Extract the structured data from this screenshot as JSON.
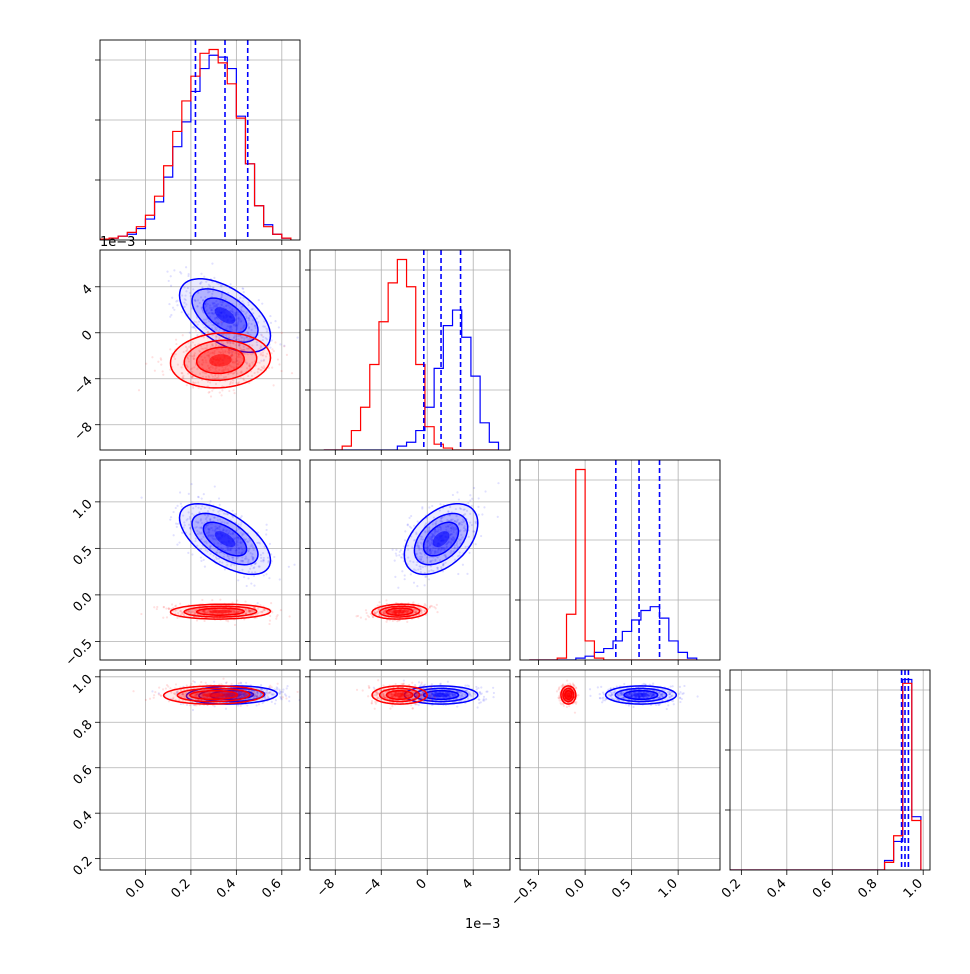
{
  "chart_data": {
    "type": "corner",
    "grid": true,
    "series": [
      {
        "color": "#0000ff"
      },
      {
        "color": "#ff0000"
      }
    ],
    "exponent_labels": {
      "p1_axis": "1e−3",
      "p1_x_axis": "1e−3"
    },
    "parameters": [
      {
        "index": 0,
        "range": [
          -0.2,
          0.68
        ],
        "ticks": [
          0.0,
          0.2,
          0.4,
          0.6
        ],
        "tick_labels": [
          "0.0",
          "0.2",
          "0.4",
          "0.6"
        ]
      },
      {
        "index": 1,
        "range": [
          -10.2,
          7.2
        ],
        "ticks": [
          -8,
          -4,
          0,
          4
        ],
        "tick_labels": [
          "−8",
          "−4",
          "0",
          "4"
        ]
      },
      {
        "index": 2,
        "range": [
          -0.7,
          1.45
        ],
        "ticks": [
          -0.5,
          0.0,
          0.5,
          1.0
        ],
        "tick_labels": [
          "−0.5",
          "0.0",
          "0.5",
          "1.0"
        ]
      },
      {
        "index": 3,
        "range": [
          0.15,
          1.03
        ],
        "ticks": [
          0.2,
          0.4,
          0.6,
          0.8,
          1.0
        ],
        "tick_labels": [
          "0.2",
          "0.4",
          "0.6",
          "0.8",
          "1.0"
        ]
      }
    ],
    "quantile_lines": [
      [
        0.22,
        0.35,
        0.45
      ],
      [
        -0.3,
        1.2,
        2.9
      ],
      [
        0.33,
        0.58,
        0.8
      ],
      [
        0.905,
        0.92,
        0.935
      ]
    ],
    "histograms_1d": [
      {
        "param": 0,
        "bin_edges": [
          -0.2,
          -0.16,
          -0.12,
          -0.08,
          -0.04,
          0.0,
          0.04,
          0.08,
          0.12,
          0.16,
          0.2,
          0.24,
          0.28,
          0.32,
          0.36,
          0.4,
          0.44,
          0.48,
          0.52,
          0.56,
          0.6,
          0.64
        ],
        "series_0": [
          0.005,
          0.01,
          0.02,
          0.03,
          0.06,
          0.11,
          0.2,
          0.33,
          0.49,
          0.62,
          0.78,
          0.9,
          0.97,
          0.96,
          0.9,
          0.65,
          0.4,
          0.18,
          0.08,
          0.03,
          0.01
        ],
        "series_1": [
          0.005,
          0.01,
          0.02,
          0.04,
          0.07,
          0.13,
          0.23,
          0.39,
          0.57,
          0.73,
          0.86,
          0.98,
          1.0,
          0.93,
          0.82,
          0.64,
          0.4,
          0.18,
          0.07,
          0.03,
          0.01
        ]
      },
      {
        "param": 1,
        "bin_edges": [
          -9,
          -8.2,
          -7.4,
          -6.6,
          -5.8,
          -5.0,
          -4.2,
          -3.4,
          -2.6,
          -1.8,
          -1.0,
          -0.2,
          0.6,
          1.4,
          2.2,
          3.0,
          3.8,
          4.6,
          5.4,
          6.2
        ],
        "series_0": [
          0.0,
          0.0,
          0.0,
          0.0,
          0.0,
          0.0,
          0.0,
          0.0,
          0.02,
          0.04,
          0.1,
          0.22,
          0.42,
          0.64,
          0.72,
          0.58,
          0.38,
          0.14,
          0.04
        ],
        "series_1": [
          0.0,
          0.0,
          0.02,
          0.1,
          0.22,
          0.44,
          0.66,
          0.86,
          0.98,
          0.84,
          0.44,
          0.12,
          0.03,
          0.01,
          0.0,
          0.0,
          0.0,
          0.0,
          0.0
        ]
      },
      {
        "param": 2,
        "bin_edges": [
          -0.6,
          -0.5,
          -0.4,
          -0.3,
          -0.2,
          -0.1,
          0.0,
          0.1,
          0.2,
          0.3,
          0.4,
          0.5,
          0.6,
          0.7,
          0.8,
          0.9,
          1.0,
          1.1,
          1.2
        ],
        "series_0": [
          0.0,
          0.0,
          0.0,
          0.0,
          0.0,
          0.01,
          0.02,
          0.04,
          0.06,
          0.1,
          0.15,
          0.21,
          0.26,
          0.28,
          0.22,
          0.1,
          0.04,
          0.01
        ],
        "series_1": [
          0.0,
          0.0,
          0.0,
          0.01,
          0.24,
          1.0,
          0.1,
          0.01,
          0.0,
          0.0,
          0.0,
          0.0,
          0.0,
          0.0,
          0.0,
          0.0,
          0.0,
          0.0
        ]
      },
      {
        "param": 3,
        "bin_edges": [
          0.15,
          0.19,
          0.23,
          0.27,
          0.31,
          0.35,
          0.39,
          0.43,
          0.47,
          0.51,
          0.55,
          0.59,
          0.63,
          0.67,
          0.71,
          0.75,
          0.79,
          0.83,
          0.87,
          0.91,
          0.95,
          0.99
        ],
        "series_0": [
          0.0,
          0.0,
          0.0,
          0.0,
          0.0,
          0.0,
          0.0,
          0.0,
          0.0,
          0.0,
          0.0,
          0.0,
          0.0,
          0.0,
          0.0,
          0.0,
          0.0,
          0.05,
          0.15,
          1.0,
          0.28
        ],
        "series_1": [
          0.0,
          0.0,
          0.0,
          0.0,
          0.0,
          0.0,
          0.0,
          0.0,
          0.0,
          0.0,
          0.0,
          0.0,
          0.0,
          0.0,
          0.0,
          0.0,
          0.0,
          0.04,
          0.18,
          0.98,
          0.26
        ]
      }
    ],
    "joint_distributions": [
      {
        "x_param": 0,
        "y_param": 1,
        "series_0": {
          "mean": [
            0.35,
            1.5
          ],
          "sd": [
            0.1,
            1.6
          ],
          "corr": -0.55
        },
        "series_1": {
          "mean": [
            0.33,
            -2.4
          ],
          "sd": [
            0.11,
            1.2
          ],
          "corr": 0.1
        }
      },
      {
        "x_param": 0,
        "y_param": 2,
        "series_0": {
          "mean": [
            0.35,
            0.6
          ],
          "sd": [
            0.1,
            0.19
          ],
          "corr": -0.6
        },
        "series_1": {
          "mean": [
            0.33,
            -0.18
          ],
          "sd": [
            0.11,
            0.04
          ],
          "corr": 0.05
        }
      },
      {
        "x_param": 1,
        "y_param": 2,
        "series_0": {
          "mean": [
            1.2,
            0.6
          ],
          "sd": [
            1.6,
            0.19
          ],
          "corr": 0.45
        },
        "series_1": {
          "mean": [
            -2.4,
            -0.18
          ],
          "sd": [
            1.2,
            0.04
          ],
          "corr": 0.1
        }
      },
      {
        "x_param": 0,
        "y_param": 3,
        "series_0": {
          "mean": [
            0.38,
            0.92
          ],
          "sd": [
            0.1,
            0.02
          ],
          "corr": 0.1
        },
        "series_1": {
          "mean": [
            0.3,
            0.92
          ],
          "sd": [
            0.11,
            0.02
          ],
          "corr": 0.05
        }
      },
      {
        "x_param": 1,
        "y_param": 3,
        "series_0": {
          "mean": [
            1.2,
            0.92
          ],
          "sd": [
            1.6,
            0.02
          ],
          "corr": 0.0
        },
        "series_1": {
          "mean": [
            -2.4,
            0.92
          ],
          "sd": [
            1.2,
            0.02
          ],
          "corr": 0.0
        }
      },
      {
        "x_param": 2,
        "y_param": 3,
        "series_0": {
          "mean": [
            0.6,
            0.92
          ],
          "sd": [
            0.19,
            0.02
          ],
          "corr": 0.0
        },
        "series_1": {
          "mean": [
            -0.18,
            0.92
          ],
          "sd": [
            0.04,
            0.02
          ],
          "corr": 0.0
        }
      }
    ]
  }
}
